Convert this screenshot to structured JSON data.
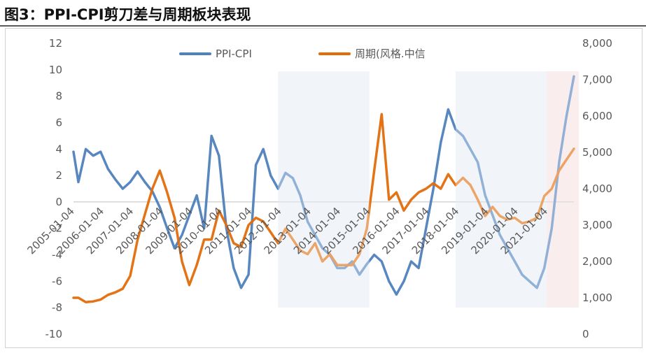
{
  "header": {
    "title": "图3：PPI-CPI剪刀差与周期板块表现"
  },
  "chart_data": {
    "type": "line",
    "title": "图3：PPI-CPI剪刀差与周期板块表现",
    "legend": {
      "placement": "top-center",
      "entries": [
        "PPI-CPI",
        "周期(风格.中信"
      ]
    },
    "grid": false,
    "x_range": [
      "2005-01",
      "2021-12"
    ],
    "x_tick_labels": [
      "2005-01-04",
      "2006-01-04",
      "2007-01-04",
      "2008-01-04",
      "2009-01-04",
      "2010-01-04",
      "2011-01-04",
      "2012-01-04",
      "2013-01-04",
      "2014-01-04",
      "2015-01-04",
      "2016-01-04",
      "2017-01-04",
      "2018-01-04",
      "2019-01-04",
      "2020-01-04",
      "2021-01-04"
    ],
    "y_left": {
      "range": [
        -10,
        12
      ],
      "ticks": [
        "12",
        "10",
        "8",
        "6",
        "4",
        "2",
        "0",
        "-2",
        "-4",
        "-6",
        "-8",
        "-10"
      ]
    },
    "y_right": {
      "range": [
        0,
        8000
      ],
      "ticks": [
        "8,000",
        "7,000",
        "6,000",
        "5,000",
        "4,000",
        "3,000",
        "2,000",
        "1,000",
        "0"
      ]
    },
    "shaded_periods": [
      {
        "start": "2011-12",
        "end": "2015-01",
        "color": "#eaf0f8"
      },
      {
        "start": "2017-12",
        "end": "2021-01",
        "color": "#eaf0f8"
      },
      {
        "start": "2021-01",
        "end": "2022-02",
        "color": "#f7e4e4"
      }
    ],
    "series": [
      {
        "name": "PPI-CPI",
        "axis": "left",
        "color": "#4f81bd",
        "x": [
          "2005-01",
          "2005-03",
          "2005-06",
          "2005-09",
          "2005-12",
          "2006-03",
          "2006-06",
          "2006-09",
          "2006-12",
          "2007-03",
          "2007-06",
          "2007-09",
          "2007-12",
          "2008-03",
          "2008-06",
          "2008-09",
          "2008-12",
          "2009-03",
          "2009-06",
          "2009-09",
          "2009-12",
          "2010-03",
          "2010-06",
          "2010-09",
          "2010-12",
          "2011-03",
          "2011-06",
          "2011-09",
          "2011-12",
          "2012-03",
          "2012-06",
          "2012-09",
          "2012-12",
          "2013-03",
          "2013-06",
          "2013-09",
          "2013-12",
          "2014-03",
          "2014-06",
          "2014-09",
          "2014-12",
          "2015-03",
          "2015-06",
          "2015-09",
          "2015-12",
          "2016-03",
          "2016-06",
          "2016-09",
          "2016-12",
          "2017-03",
          "2017-06",
          "2017-09",
          "2017-12",
          "2018-03",
          "2018-06",
          "2018-09",
          "2018-12",
          "2019-03",
          "2019-06",
          "2019-09",
          "2019-12",
          "2020-03",
          "2020-06",
          "2020-09",
          "2020-12",
          "2021-03",
          "2021-06",
          "2021-09",
          "2021-12"
        ],
        "values": [
          3.8,
          1.5,
          4.0,
          3.5,
          3.8,
          2.5,
          1.7,
          1.0,
          1.5,
          2.3,
          1.5,
          0.8,
          -0.4,
          -2.0,
          -3.5,
          -2.5,
          -1.0,
          0.5,
          -2.0,
          5.0,
          3.5,
          -2.0,
          -5.0,
          -6.5,
          -5.5,
          2.8,
          4.0,
          2.0,
          1.0,
          2.2,
          1.8,
          0.5,
          -1.5,
          -2.5,
          -3.5,
          -4.0,
          -5.0,
          -5.0,
          -4.5,
          -5.5,
          -4.7,
          -4.0,
          -4.5,
          -6.0,
          -7.0,
          -6.0,
          -4.5,
          -5.0,
          -2.0,
          1.0,
          4.5,
          7.0,
          5.5,
          5.0,
          4.0,
          3.0,
          0.5,
          -1.0,
          -2.5,
          -3.5,
          -4.5,
          -5.5,
          -6.0,
          -6.5,
          -5.0,
          -2.0,
          3.0,
          6.5,
          9.5
        ]
      },
      {
        "name": "周期(风格.中信",
        "axis": "right",
        "color": "#e36c09",
        "x": [
          "2005-01",
          "2005-03",
          "2005-06",
          "2005-09",
          "2005-12",
          "2006-03",
          "2006-06",
          "2006-09",
          "2006-12",
          "2007-03",
          "2007-06",
          "2007-09",
          "2007-12",
          "2008-03",
          "2008-06",
          "2008-09",
          "2008-12",
          "2009-03",
          "2009-06",
          "2009-09",
          "2009-12",
          "2010-03",
          "2010-06",
          "2010-09",
          "2010-12",
          "2011-03",
          "2011-06",
          "2011-09",
          "2011-12",
          "2012-03",
          "2012-06",
          "2012-09",
          "2012-12",
          "2013-03",
          "2013-06",
          "2013-09",
          "2013-12",
          "2014-03",
          "2014-06",
          "2014-09",
          "2014-12",
          "2015-03",
          "2015-06",
          "2015-09",
          "2015-12",
          "2016-03",
          "2016-06",
          "2016-09",
          "2016-12",
          "2017-03",
          "2017-06",
          "2017-09",
          "2017-12",
          "2018-03",
          "2018-06",
          "2018-09",
          "2018-12",
          "2019-03",
          "2019-06",
          "2019-09",
          "2019-12",
          "2020-03",
          "2020-06",
          "2020-09",
          "2020-12",
          "2021-03",
          "2021-06",
          "2021-09",
          "2021-12"
        ],
        "values": [
          1000,
          1000,
          880,
          900,
          950,
          1080,
          1150,
          1250,
          1600,
          2600,
          3300,
          4000,
          4500,
          3900,
          3200,
          2000,
          1350,
          1900,
          2600,
          2600,
          3400,
          3000,
          2500,
          2400,
          3000,
          3200,
          3100,
          2800,
          2500,
          2900,
          2600,
          2300,
          2200,
          2500,
          2000,
          2200,
          1900,
          1900,
          1900,
          2200,
          2900,
          4500,
          6050,
          3700,
          3900,
          3400,
          3700,
          3900,
          4000,
          4150,
          4000,
          4400,
          4100,
          4300,
          4100,
          3700,
          3250,
          3500,
          3250,
          3150,
          3200,
          3050,
          3100,
          3200,
          3800,
          4000,
          4500,
          4800,
          5100
        ]
      }
    ]
  }
}
